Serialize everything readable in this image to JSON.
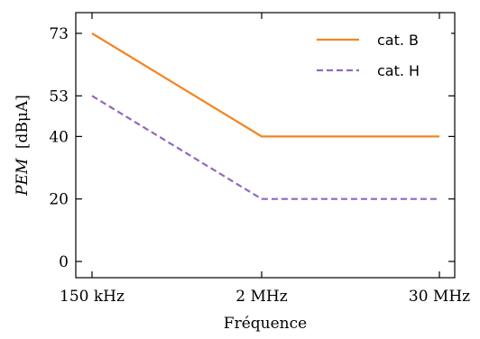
{
  "chart_data": {
    "type": "line",
    "x_categories": [
      "150 kHz",
      "2 MHz",
      "30 MHz"
    ],
    "y_ticks": [
      0,
      20,
      40,
      53,
      73
    ],
    "ylim": [
      -4,
      80
    ],
    "xlabel": "Fréquence",
    "ylabel_italic": "PEM",
    "ylabel_unit": "[dBμA]",
    "legend_position": "top-right",
    "grid": false,
    "series": [
      {
        "name": "cat. B",
        "color": "#f5841f",
        "dash": "solid",
        "values": [
          73,
          40,
          40
        ]
      },
      {
        "name": "cat. H",
        "color": "#9467bd",
        "dash": "dashed",
        "values": [
          53,
          20,
          20
        ]
      }
    ]
  }
}
